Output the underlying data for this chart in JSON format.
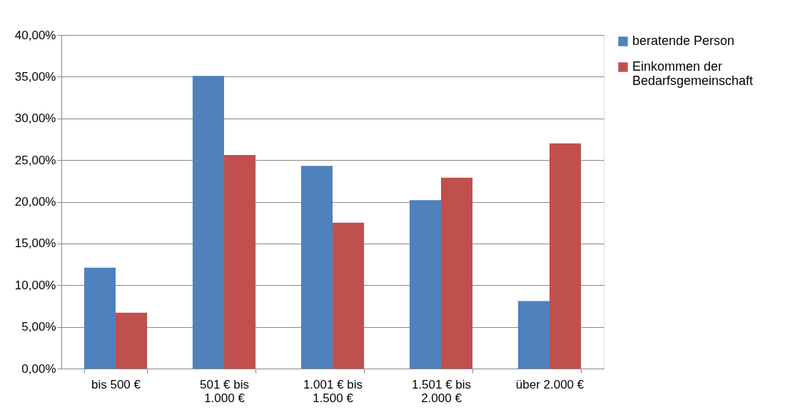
{
  "chart_data": {
    "type": "bar",
    "categories": [
      "bis 500 €",
      "501 € bis 1.000 €",
      "1.001 € bis 1.500 €",
      "1.501 € bis 2.000 €",
      "über 2.000 €"
    ],
    "series": [
      {
        "name": "beratende Person",
        "color": "#4f81bd",
        "values": [
          12.1,
          35.1,
          24.3,
          20.2,
          8.1
        ]
      },
      {
        "name": "Einkommen der Bedarfsgemeinschaft",
        "color": "#c0504d",
        "values": [
          6.7,
          25.6,
          17.5,
          22.9,
          27.0
        ]
      }
    ],
    "ylim": [
      0,
      40
    ],
    "yticks": [
      {
        "value": 0,
        "label": "0,00%"
      },
      {
        "value": 5,
        "label": "5,00%"
      },
      {
        "value": 10,
        "label": "10,00%"
      },
      {
        "value": 15,
        "label": "15,00%"
      },
      {
        "value": 20,
        "label": "20,00%"
      },
      {
        "value": 25,
        "label": "25,00%"
      },
      {
        "value": 30,
        "label": "30,00%"
      },
      {
        "value": 35,
        "label": "35,00%"
      },
      {
        "value": 40,
        "label": "40,00%"
      }
    ],
    "grid": "y",
    "legend": "top right"
  }
}
